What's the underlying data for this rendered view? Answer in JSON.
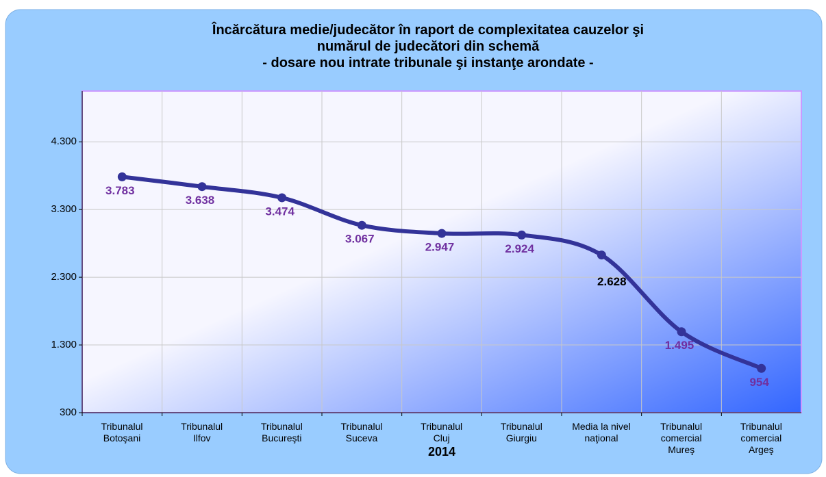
{
  "chart_data": {
    "type": "line",
    "title": "Încărcătura medie/judecător în raport de complexitatea cauzelor şi\nnumărul de judecători din schemă\n- dosare nou intrate tribunale şi instanţe arondate -",
    "x_label": "2014",
    "categories": [
      "Tribunalul\nBotoşani",
      "Tribunalul\nIlfov",
      "Tribunalul\nBucureşti",
      "Tribunalul\nSuceva",
      "Tribunalul\nCluj",
      "Tribunalul\nGiurgiu",
      "Media la nivel\nnaţional",
      "Tribunalul\ncomercial\nMureş",
      "Tribunalul\ncomercial\nArgeş"
    ],
    "series": [
      {
        "name": "Încărcătura medie",
        "color": "#333399",
        "values": [
          3783,
          3638,
          3474,
          3067,
          2947,
          2924,
          2628,
          1495,
          954
        ],
        "value_labels": [
          "3.783",
          "3.638",
          "3.474",
          "3.067",
          "2.947",
          "2.924",
          "2.628",
          "1.495",
          "954"
        ],
        "value_label_colors": [
          "#7030a0",
          "#7030a0",
          "#7030a0",
          "#7030a0",
          "#7030a0",
          "#7030a0",
          "#000000",
          "#7030a0",
          "#7030a0"
        ]
      }
    ],
    "ylim": [
      300,
      5050
    ],
    "yticks": [
      {
        "value": 300,
        "label": "300"
      },
      {
        "value": 1300,
        "label": "1.300"
      },
      {
        "value": 2300,
        "label": "2.300"
      },
      {
        "value": 3300,
        "label": "3.300"
      },
      {
        "value": 4300,
        "label": "4.300"
      }
    ],
    "grid": true,
    "smooth": true
  }
}
